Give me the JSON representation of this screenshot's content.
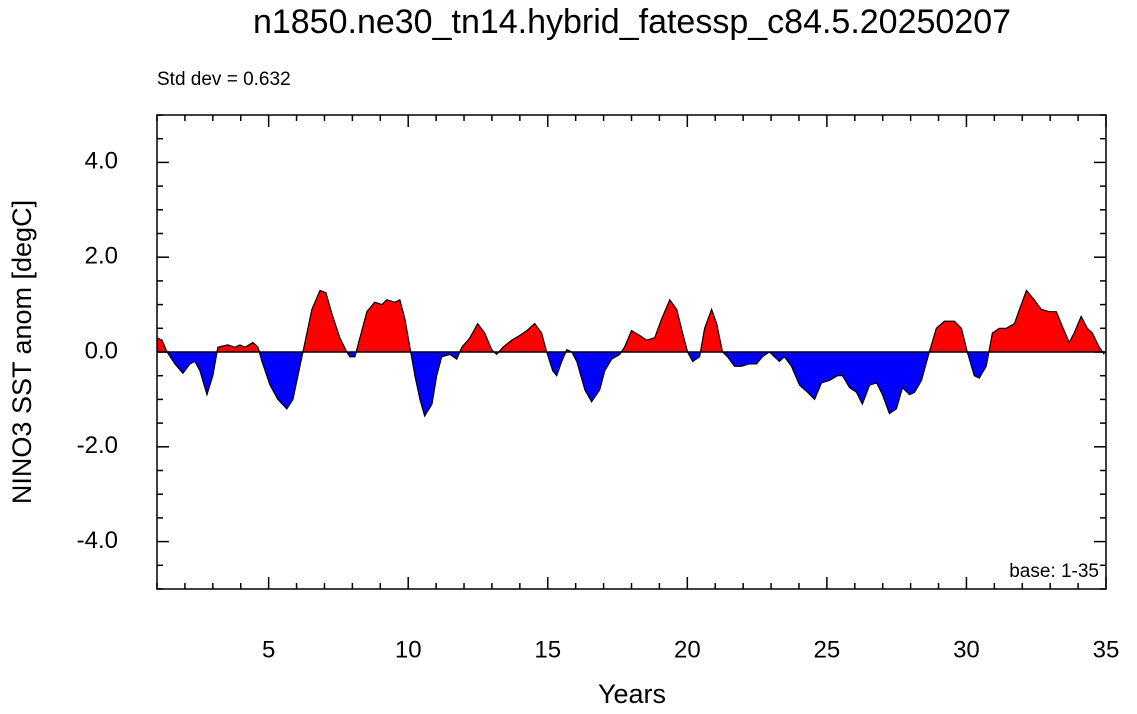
{
  "chart_data": {
    "type": "area",
    "title": "n1850.ne30_tn14.hybrid_fatessp_c84.5.20250207",
    "annotations": [
      "Std dev = 0.632",
      "base: 1-35"
    ],
    "x_label": "Years",
    "y_label": "NINO3 SST anom [degC]",
    "xlim": [
      1,
      35
    ],
    "xticks": [
      5,
      10,
      15,
      20,
      25,
      30,
      35
    ],
    "ylim": [
      -5,
      5
    ],
    "yticks": [
      {
        "value": -4,
        "label": "-4.0"
      },
      {
        "value": -2,
        "label": "-2.0"
      },
      {
        "value": 0,
        "label": "0.0"
      },
      {
        "value": 2,
        "label": "2.0"
      },
      {
        "value": 4,
        "label": "4.0"
      }
    ],
    "colors": {
      "positive": "#ff0000",
      "negative": "#0000ff"
    },
    "x": [
      1.0,
      1.18,
      1.36,
      1.64,
      1.93,
      2.18,
      2.36,
      2.54,
      2.79,
      3.0,
      3.18,
      3.54,
      3.79,
      3.97,
      4.15,
      4.44,
      4.62,
      4.76,
      5.05,
      5.33,
      5.65,
      5.87,
      6.12,
      6.3,
      6.55,
      6.84,
      7.05,
      7.27,
      7.55,
      7.8,
      7.91,
      8.09,
      8.27,
      8.52,
      8.8,
      9.06,
      9.23,
      9.52,
      9.7,
      9.88,
      10.06,
      10.24,
      10.42,
      10.59,
      10.85,
      11.02,
      11.2,
      11.49,
      11.74,
      11.92,
      12.21,
      12.49,
      12.74,
      12.99,
      13.17,
      13.39,
      13.71,
      14.0,
      14.25,
      14.53,
      14.78,
      14.96,
      15.18,
      15.32,
      15.5,
      15.68,
      15.86,
      16.04,
      16.33,
      16.57,
      16.86,
      17.04,
      17.29,
      17.58,
      17.75,
      18.0,
      18.29,
      18.54,
      18.83,
      19.08,
      19.37,
      19.62,
      19.83,
      20.01,
      20.19,
      20.44,
      20.62,
      20.87,
      21.05,
      21.26,
      21.44,
      21.69,
      21.94,
      22.23,
      22.48,
      22.69,
      22.94,
      23.12,
      23.3,
      23.48,
      23.73,
      24.02,
      24.31,
      24.56,
      24.81,
      25.09,
      25.38,
      25.56,
      25.81,
      26.06,
      26.27,
      26.53,
      26.78,
      26.99,
      27.24,
      27.49,
      27.71,
      27.96,
      28.14,
      28.39,
      28.67,
      28.92,
      29.21,
      29.57,
      29.82,
      30.03,
      30.28,
      30.46,
      30.71,
      30.93,
      31.18,
      31.43,
      31.72,
      31.9,
      32.15,
      32.43,
      32.68,
      32.97,
      33.22,
      33.43,
      33.68,
      33.86,
      34.11,
      34.33,
      34.51,
      34.76,
      34.94
    ],
    "values": [
      0.3,
      0.25,
      0,
      -0.25,
      -0.45,
      -0.25,
      -0.2,
      -0.4,
      -0.9,
      -0.5,
      0.1,
      0.15,
      0.1,
      0.15,
      0.1,
      0.2,
      0.1,
      -0.2,
      -0.7,
      -1.0,
      -1.2,
      -1.0,
      -0.3,
      0.2,
      0.9,
      1.3,
      1.25,
      0.8,
      0.3,
      0.0,
      -0.1,
      -0.1,
      0.3,
      0.85,
      1.05,
      1.0,
      1.1,
      1.05,
      1.1,
      0.7,
      0.1,
      -0.5,
      -1.0,
      -1.35,
      -1.1,
      -0.5,
      -0.1,
      -0.05,
      -0.15,
      0.1,
      0.3,
      0.6,
      0.4,
      0.05,
      -0.05,
      0.1,
      0.25,
      0.35,
      0.45,
      0.6,
      0.4,
      0.0,
      -0.4,
      -0.5,
      -0.2,
      0.05,
      0.0,
      -0.2,
      -0.8,
      -1.05,
      -0.8,
      -0.4,
      -0.15,
      -0.05,
      0.1,
      0.45,
      0.35,
      0.25,
      0.3,
      0.7,
      1.1,
      0.9,
      0.4,
      0.0,
      -0.2,
      -0.1,
      0.5,
      0.9,
      0.6,
      0.0,
      -0.1,
      -0.3,
      -0.3,
      -0.25,
      -0.25,
      -0.1,
      0.0,
      -0.1,
      -0.2,
      -0.1,
      -0.3,
      -0.7,
      -0.85,
      -1.0,
      -0.65,
      -0.6,
      -0.5,
      -0.5,
      -0.75,
      -0.85,
      -1.1,
      -0.7,
      -0.65,
      -0.9,
      -1.3,
      -1.2,
      -0.75,
      -0.9,
      -0.85,
      -0.6,
      0.0,
      0.5,
      0.65,
      0.65,
      0.5,
      0.0,
      -0.5,
      -0.55,
      -0.3,
      0.4,
      0.5,
      0.5,
      0.6,
      0.9,
      1.3,
      1.1,
      0.9,
      0.85,
      0.85,
      0.55,
      0.2,
      0.4,
      0.75,
      0.5,
      0.4,
      0.1,
      -0.05
    ]
  }
}
